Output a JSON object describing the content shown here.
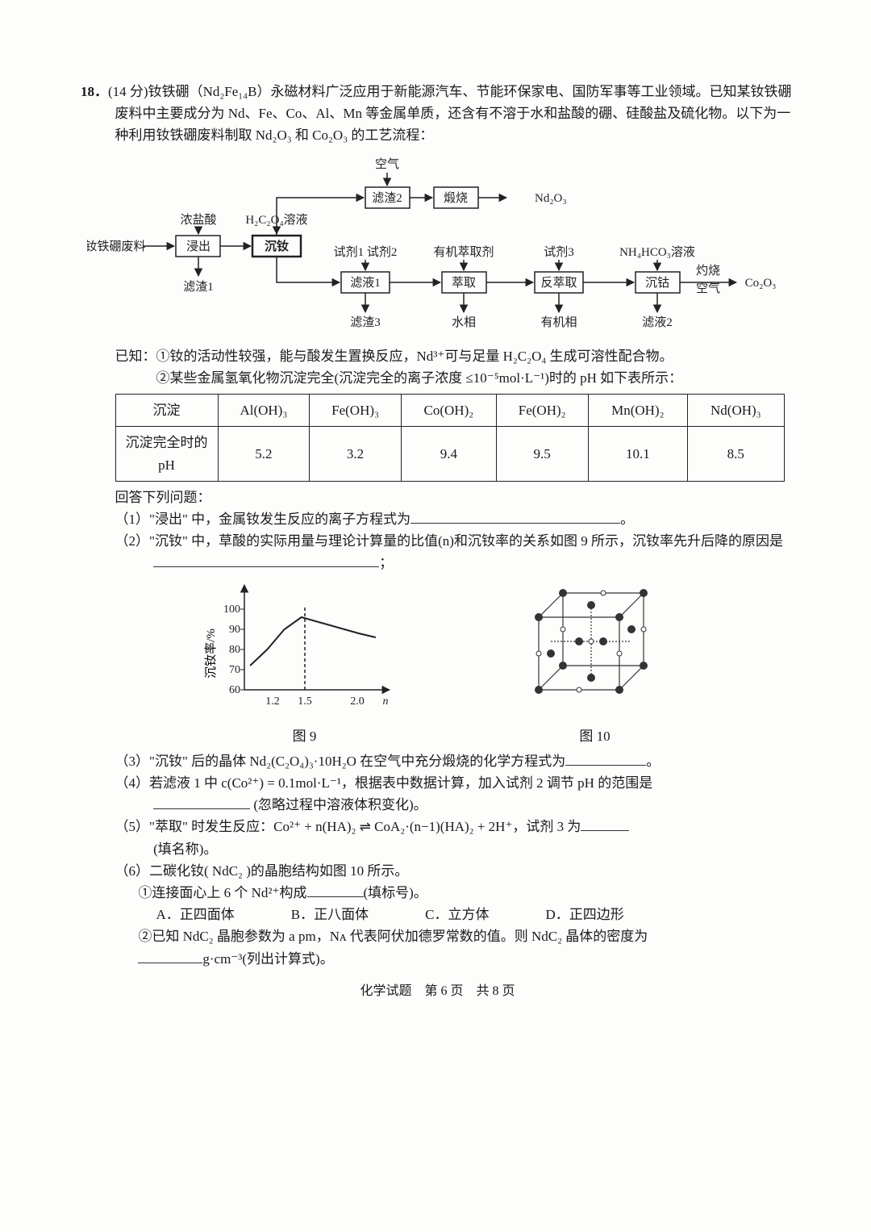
{
  "q": {
    "num": "18．",
    "points": "(14 分)",
    "stem1": "钕铁硼（Nd₂Fe₁₄B）永磁材料广泛应用于新能源汽车、节能环保家电、国防军事等工业领域。已知某钕铁硼废料中主要成分为 Nd、Fe、Co、Al、Mn 等金属单质，还含有不溶于水和盐酸的硼、硅酸盐及硫化物。以下为一种利用钕铁硼废料制取 Nd₂O₃ 和 Co₂O₃ 的工艺流程：",
    "known_lead": "已知：",
    "known1": "①钕的活动性较强，能与酸发生置换反应，Nd³⁺可与足量 H₂C₂O₄ 生成可溶性配合物。",
    "known2": "②某些金属氢氧化物沉淀完全(沉淀完全的离子浓度 ≤10⁻⁵mol·L⁻¹)时的 pH 如下表所示：",
    "answer_lead": "回答下列问题：",
    "p1a": "（1）\"浸出\" 中，金属钕发生反应的离子方程式为",
    "p1b": "。",
    "p2a": "（2）\"沉钕\" 中，草酸的实际用量与理论计算量的比值(n)和沉钕率的关系如图 9 所示，沉钕率先升后降的原因是",
    "p2b": "；",
    "p3": "（3）\"沉钕\" 后的晶体 Nd₂(C₂O₄)₃·10H₂O 在空气中充分煅烧的化学方程式为",
    "p3b": "。",
    "p4a": "（4）若滤液 1 中 c(Co²⁺) = 0.1mol·L⁻¹，根据表中数据计算，加入试剂 2 调节 pH 的范围是",
    "p4b": "(忽略过程中溶液体积变化)。",
    "p5a": "（5）\"萃取\" 时发生反应：Co²⁺ + n(HA)₂ ⇌ CoA₂·(n−1)(HA)₂ + 2H⁺，试剂 3 为",
    "p5b": "(填名称)。",
    "p6a": "（6）二碳化钕( NdC₂ )的晶胞结构如图 10 所示。",
    "p6_1a": "①连接面心上 6 个 Nd²⁺构成",
    "p6_1b": "(填标号)。",
    "optA": "A．正四面体",
    "optB": "B．正八面体",
    "optC": "C．立方体",
    "optD": "D．正四边形",
    "p6_2a": "②已知 NdC₂ 晶胞参数为 a pm，Nᴀ 代表阿伏加德罗常数的值。则 NdC₂ 晶体的密度为",
    "p6_2b": "g·cm⁻³(列出计算式)。"
  },
  "flow": {
    "air": "空气",
    "hcl": "浓盐酸",
    "h2c2o4": "H₂C₂O₄溶液",
    "lz2": "滤渣2",
    "calc": "煅烧",
    "nd2o3": "Nd₂O₃",
    "feed": "钕铁硼废料",
    "jin": "浸出",
    "cnd": "沉钕",
    "sj12": "试剂1 试剂2",
    "ext": "有机萃取剂",
    "sj3": "试剂3",
    "nh4": "NH₄HCO₃溶液",
    "lz1": "滤渣1",
    "ly1": "滤液1",
    "cq": "萃取",
    "fcq": "反萃取",
    "cco": "沉钴",
    "shao": "灼烧",
    "kongqi": "空气",
    "co2o3": "Co₂O₃",
    "lz3": "滤渣3",
    "water": "水相",
    "org": "有机相",
    "ly2": "滤液2"
  },
  "table": {
    "h1": "沉淀",
    "c1": "Al(OH)₃",
    "c2": "Fe(OH)₃",
    "c3": "Co(OH)₂",
    "c4": "Fe(OH)₂",
    "c5": "Mn(OH)₂",
    "c6": "Nd(OH)₃",
    "h2": "沉淀完全时的pH",
    "v1": "5.2",
    "v2": "3.2",
    "v3": "9.4",
    "v4": "9.5",
    "v5": "10.1",
    "v6": "8.5"
  },
  "fig9": {
    "ylabel": "沉钕率/%",
    "yticks": [
      "60",
      "70",
      "80",
      "90",
      "100"
    ],
    "xticks": [
      "1.2",
      "1.5",
      "2.0"
    ],
    "xvar": "n",
    "label": "图 9",
    "line_color": "#222",
    "axis_color": "#222",
    "points": [
      [
        1.05,
        72
      ],
      [
        1.2,
        80
      ],
      [
        1.35,
        90
      ],
      [
        1.5,
        96
      ],
      [
        1.75,
        92
      ],
      [
        2.0,
        88
      ],
      [
        2.15,
        86
      ]
    ]
  },
  "fig10": {
    "label": "图 10"
  },
  "foot": "化学试题　第 6 页　共 8 页"
}
